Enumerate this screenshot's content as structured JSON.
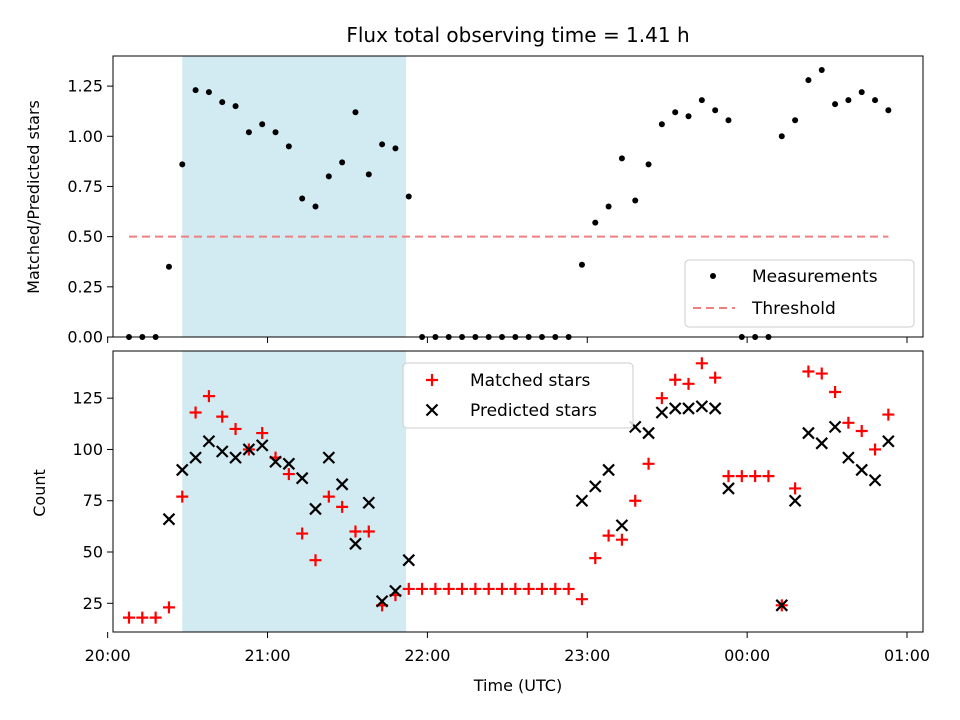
{
  "chart_data": [
    {
      "type": "scatter",
      "title": "Flux total observing time = 1.41 h",
      "xlabel": "",
      "ylabel": "Matched/Predicted stars",
      "ylim": [
        0,
        1.4
      ],
      "yticks": [
        "0.00",
        "0.25",
        "0.50",
        "0.75",
        "1.00",
        "1.25"
      ],
      "shaded_span": [
        "20:28",
        "21:52"
      ],
      "shade_color": "#add8e6",
      "legend": {
        "placement": "lower-right",
        "entries": [
          "Measurements",
          "Threshold"
        ]
      },
      "series": [
        {
          "name": "Measurements",
          "marker": "dot",
          "color": "#000000",
          "x": [
            "20:08",
            "20:13",
            "20:18",
            "20:23",
            "20:28",
            "20:33",
            "20:38",
            "20:43",
            "20:48",
            "20:53",
            "20:58",
            "21:03",
            "21:08",
            "21:13",
            "21:18",
            "21:23",
            "21:28",
            "21:33",
            "21:38",
            "21:43",
            "21:48",
            "21:53",
            "21:58",
            "22:03",
            "22:08",
            "22:13",
            "22:18",
            "22:23",
            "22:28",
            "22:33",
            "22:38",
            "22:43",
            "22:48",
            "22:53",
            "22:58",
            "23:03",
            "23:08",
            "23:13",
            "23:18",
            "23:23",
            "23:28",
            "23:33",
            "23:38",
            "23:43",
            "23:48",
            "23:53",
            "23:58",
            "00:03",
            "00:08",
            "00:13",
            "00:18",
            "00:23",
            "00:28",
            "00:33",
            "00:38",
            "00:43",
            "00:48",
            "00:53"
          ],
          "y": [
            0.0,
            0.0,
            0.0,
            0.35,
            0.86,
            1.23,
            1.22,
            1.17,
            1.15,
            1.02,
            1.06,
            1.02,
            0.95,
            0.69,
            0.65,
            0.8,
            0.87,
            1.12,
            0.81,
            0.96,
            0.94,
            0.7,
            0.0,
            0.0,
            0.0,
            0.0,
            0.0,
            0.0,
            0.0,
            0.0,
            0.0,
            0.0,
            0.0,
            0.0,
            0.36,
            0.57,
            0.65,
            0.89,
            0.68,
            0.86,
            1.06,
            1.12,
            1.1,
            1.18,
            1.13,
            1.08,
            0.0,
            0.0,
            0.0,
            1.0,
            1.08,
            1.28,
            1.33,
            1.16,
            1.18,
            1.22,
            1.18,
            1.13
          ]
        },
        {
          "name": "Threshold",
          "line": "dashed",
          "color": "#f08080",
          "x": [
            "20:08",
            "00:53"
          ],
          "y": [
            0.5,
            0.5
          ]
        }
      ]
    },
    {
      "type": "scatter",
      "title": "",
      "xlabel": "Time (UTC)",
      "ylabel": "Count",
      "ylim": [
        11,
        148
      ],
      "yticks": [
        "25",
        "50",
        "75",
        "100",
        "125"
      ],
      "xlim": [
        "20:02",
        "01:06"
      ],
      "xticks": [
        "20:00",
        "21:00",
        "22:00",
        "23:00",
        "00:00",
        "01:00"
      ],
      "shaded_span": [
        "20:28",
        "21:52"
      ],
      "legend": {
        "placement": "top-center",
        "entries": [
          "Matched stars",
          "Predicted stars"
        ]
      },
      "series": [
        {
          "name": "Matched stars",
          "marker": "plus",
          "color": "#ff0000",
          "x": [
            "20:08",
            "20:13",
            "20:18",
            "20:23",
            "20:28",
            "20:33",
            "20:38",
            "20:43",
            "20:48",
            "20:53",
            "20:58",
            "21:03",
            "21:08",
            "21:13",
            "21:18",
            "21:23",
            "21:28",
            "21:33",
            "21:38",
            "21:43",
            "21:48",
            "21:53",
            "21:58",
            "22:03",
            "22:08",
            "22:13",
            "22:18",
            "22:23",
            "22:28",
            "22:33",
            "22:38",
            "22:43",
            "22:48",
            "22:53",
            "22:58",
            "23:03",
            "23:08",
            "23:13",
            "23:18",
            "23:23",
            "23:28",
            "23:33",
            "23:38",
            "23:43",
            "23:48",
            "23:53",
            "23:58",
            "00:03",
            "00:08",
            "00:13",
            "00:18",
            "00:23",
            "00:28",
            "00:33",
            "00:38",
            "00:43",
            "00:48",
            "00:53"
          ],
          "y": [
            18,
            18,
            18,
            23,
            77,
            118,
            126,
            116,
            110,
            100,
            108,
            96,
            88,
            59,
            46,
            77,
            72,
            60,
            60,
            24,
            29,
            32,
            32,
            32,
            32,
            32,
            32,
            32,
            32,
            32,
            32,
            32,
            32,
            32,
            27,
            47,
            58,
            56,
            75,
            93,
            125,
            134,
            132,
            142,
            135,
            87,
            87,
            87,
            87,
            24,
            81,
            138,
            137,
            128,
            113,
            109,
            100,
            117
          ]
        },
        {
          "name": "Predicted stars",
          "marker": "x",
          "color": "#000000",
          "x": [
            "20:23",
            "20:28",
            "20:33",
            "20:38",
            "20:43",
            "20:48",
            "20:53",
            "20:58",
            "21:03",
            "21:08",
            "21:13",
            "21:18",
            "21:23",
            "21:28",
            "21:33",
            "21:38",
            "21:43",
            "21:48",
            "21:53",
            "22:58",
            "23:03",
            "23:08",
            "23:13",
            "23:18",
            "23:23",
            "23:28",
            "23:33",
            "23:38",
            "23:43",
            "23:48",
            "23:53",
            "00:13",
            "00:18",
            "00:23",
            "00:28",
            "00:33",
            "00:38",
            "00:43",
            "00:48",
            "00:53"
          ],
          "y": [
            66,
            90,
            96,
            104,
            99,
            96,
            100,
            102,
            94,
            93,
            86,
            71,
            96,
            83,
            54,
            74,
            26,
            31,
            46,
            75,
            82,
            90,
            63,
            111,
            108,
            118,
            120,
            120,
            121,
            120,
            81,
            24,
            75,
            108,
            103,
            111,
            96,
            90,
            85,
            104
          ]
        }
      ]
    }
  ]
}
